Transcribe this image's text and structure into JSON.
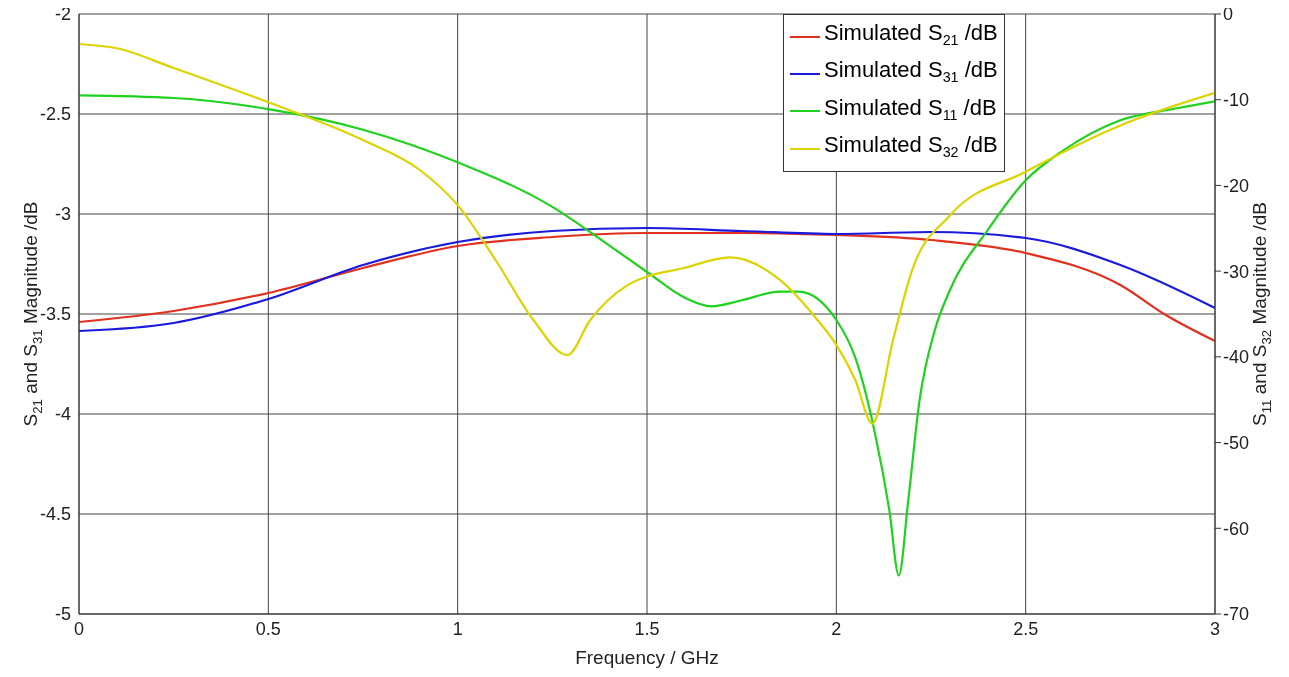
{
  "chart_data": {
    "type": "line",
    "xlabel": "Frequency / GHz",
    "ylabel": "S$_{21}$ and S$_{31}$ Magnitude /dB",
    "y2label": "S$_{11}$ and S$_{32}$ Magnitude /dB",
    "xlim": [
      0,
      3
    ],
    "xticks": [
      0,
      0.5,
      1,
      1.5,
      2,
      2.5,
      3
    ],
    "ylim": [
      -5,
      -2
    ],
    "yticks": [
      -5,
      -4.5,
      -4,
      -3.5,
      -3,
      -2.5,
      -2
    ],
    "y2lim": [
      -70,
      0
    ],
    "y2ticks": [
      -70,
      -60,
      -50,
      -40,
      -30,
      -20,
      -10,
      0
    ],
    "grid": true,
    "legend": "top right",
    "marker": "none",
    "line_style": "solid",
    "series": [
      {
        "name": "Simulated S$_{21}$ /dB",
        "color": "#e0301e",
        "x": [
          0,
          0.25,
          0.5,
          0.75,
          1,
          1.25,
          1.5,
          1.75,
          2,
          2.25,
          2.5,
          2.75,
          2.87,
          3
        ],
        "values": [
          -3.54,
          -3.485,
          -3.395,
          -3.27,
          -3.16,
          -3.115,
          -3.095,
          -3.095,
          -3.105,
          -3.13,
          -3.195,
          -3.355,
          -3.505,
          -3.635
        ]
      },
      {
        "name": "Simulated S$_{31}$ /dB",
        "color": "#1a1adc",
        "x": [
          0,
          0.25,
          0.5,
          0.75,
          1,
          1.25,
          1.5,
          1.75,
          2,
          2.25,
          2.5,
          2.75,
          3
        ],
        "values": [
          -3.585,
          -3.545,
          -3.425,
          -3.255,
          -3.14,
          -3.085,
          -3.07,
          -3.085,
          -3.1,
          -3.09,
          -3.12,
          -3.255,
          -3.47
        ]
      },
      {
        "name": "Simulated S$_{11}$ /dB",
        "color": "#1ed21e",
        "axis": "y2",
        "x": [
          0,
          0.25,
          0.5,
          0.75,
          1,
          1.25,
          1.4,
          1.5,
          1.6,
          1.67,
          1.75,
          1.85,
          1.9,
          2,
          2.05,
          2.1,
          2.14,
          2.165,
          2.19,
          2.22,
          2.26,
          2.3,
          2.4,
          2.5,
          2.6,
          2.75,
          2.9,
          3
        ],
        "values": [
          -9.5,
          -9.8,
          -11.1,
          -13.5,
          -17.3,
          -22.5,
          -27,
          -30.1,
          -33.1,
          -34.1,
          -33.4,
          -32.4,
          -32.4,
          -35.7,
          -40.1,
          -48.5,
          -57.9,
          -65.5,
          -56.7,
          -45,
          -36.9,
          -32.2,
          -25.2,
          -19.4,
          -15.9,
          -12.4,
          -11,
          -10.2
        ]
      },
      {
        "name": "Simulated S$_{32}$ /dB",
        "color": "#dcd400",
        "axis": "y2",
        "x": [
          0,
          0.1,
          0.25,
          0.5,
          0.75,
          0.9,
          1,
          1.1,
          1.2,
          1.29,
          1.35,
          1.45,
          1.6,
          1.72,
          1.85,
          1.95,
          2,
          2.05,
          2.095,
          2.15,
          2.2,
          2.3,
          2.5,
          2.75,
          3
        ],
        "values": [
          -3.5,
          -4,
          -6.3,
          -10.3,
          -14.7,
          -18.2,
          -22.3,
          -28.7,
          -35.7,
          -39.8,
          -35.7,
          -31.6,
          -29.6,
          -28.4,
          -31,
          -35.7,
          -38.6,
          -42.7,
          -47.8,
          -38,
          -29.9,
          -23.5,
          -18.4,
          -13,
          -9.2
        ]
      }
    ]
  }
}
